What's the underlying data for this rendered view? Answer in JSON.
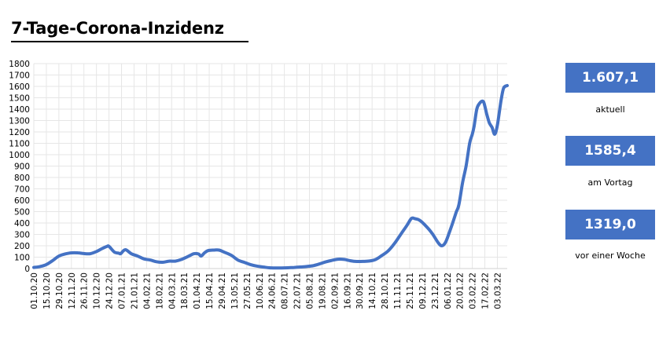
{
  "header": {
    "title": "7-Tage-Corona-Inzidenz"
  },
  "kpis": [
    {
      "value": "1.607,1",
      "label": "aktuell"
    },
    {
      "value": "1585,4",
      "label": "am Vortag"
    },
    {
      "value": "1319,0",
      "label": "vor einer Woche"
    }
  ],
  "colors": {
    "accent": "#4472c4",
    "grid": "#e6e6e6"
  },
  "chart_data": {
    "type": "line",
    "title": "7-Tage-Corona-Inzidenz",
    "xlabel": "",
    "ylabel": "",
    "ylim": [
      0,
      1800
    ],
    "yticks": [
      0,
      100,
      200,
      300,
      400,
      500,
      600,
      700,
      800,
      900,
      1000,
      1100,
      1200,
      1300,
      1400,
      1500,
      1600,
      1700,
      1800
    ],
    "grid": true,
    "x_start": "2020-10-01",
    "x_end": "2022-03-14",
    "xticks": [
      "01.10.20",
      "15.10.20",
      "29.10.20",
      "12.11.20",
      "26.11.20",
      "10.12.20",
      "24.12.20",
      "07.01.21",
      "21.01.21",
      "04.02.21",
      "18.02.21",
      "04.03.21",
      "18.03.21",
      "01.04.21",
      "15.04.21",
      "29.04.21",
      "13.05.21",
      "27.05.21",
      "10.06.21",
      "24.06.21",
      "08.07.21",
      "22.07.21",
      "05.08.21",
      "19.08.21",
      "02.09.21",
      "16.09.21",
      "30.09.21",
      "14.10.21",
      "28.10.21",
      "11.11.21",
      "25.11.21",
      "09.12.21",
      "23.12.21",
      "06.01.22",
      "20.01.22",
      "03.02.22",
      "17.02.22",
      "03.03.22"
    ],
    "series": [
      {
        "values": [
          [
            "2020-10-01",
            10
          ],
          [
            "2020-10-08",
            18
          ],
          [
            "2020-10-15",
            35
          ],
          [
            "2020-10-22",
            70
          ],
          [
            "2020-10-29",
            110
          ],
          [
            "2020-11-05",
            128
          ],
          [
            "2020-11-12",
            138
          ],
          [
            "2020-11-19",
            138
          ],
          [
            "2020-11-26",
            132
          ],
          [
            "2020-12-03",
            130
          ],
          [
            "2020-12-10",
            150
          ],
          [
            "2020-12-17",
            178
          ],
          [
            "2020-12-22",
            195
          ],
          [
            "2020-12-24",
            195
          ],
          [
            "2020-12-30",
            145
          ],
          [
            "2021-01-04",
            135
          ],
          [
            "2021-01-06",
            130
          ],
          [
            "2021-01-09",
            155
          ],
          [
            "2021-01-12",
            165
          ],
          [
            "2021-01-18",
            130
          ],
          [
            "2021-01-25",
            110
          ],
          [
            "2021-02-01",
            85
          ],
          [
            "2021-02-08",
            75
          ],
          [
            "2021-02-15",
            60
          ],
          [
            "2021-02-22",
            55
          ],
          [
            "2021-03-01",
            65
          ],
          [
            "2021-03-08",
            65
          ],
          [
            "2021-03-15",
            80
          ],
          [
            "2021-03-22",
            105
          ],
          [
            "2021-03-29",
            130
          ],
          [
            "2021-04-03",
            128
          ],
          [
            "2021-04-06",
            110
          ],
          [
            "2021-04-10",
            140
          ],
          [
            "2021-04-14",
            158
          ],
          [
            "2021-04-20",
            162
          ],
          [
            "2021-04-26",
            162
          ],
          [
            "2021-05-03",
            140
          ],
          [
            "2021-05-10",
            115
          ],
          [
            "2021-05-17",
            75
          ],
          [
            "2021-05-24",
            55
          ],
          [
            "2021-05-31",
            35
          ],
          [
            "2021-06-07",
            22
          ],
          [
            "2021-06-14",
            14
          ],
          [
            "2021-06-21",
            7
          ],
          [
            "2021-06-28",
            5
          ],
          [
            "2021-07-05",
            5
          ],
          [
            "2021-07-12",
            7
          ],
          [
            "2021-07-19",
            10
          ],
          [
            "2021-07-26",
            14
          ],
          [
            "2021-08-02",
            18
          ],
          [
            "2021-08-09",
            25
          ],
          [
            "2021-08-16",
            40
          ],
          [
            "2021-08-23",
            58
          ],
          [
            "2021-08-30",
            72
          ],
          [
            "2021-09-06",
            82
          ],
          [
            "2021-09-13",
            80
          ],
          [
            "2021-09-20",
            68
          ],
          [
            "2021-09-27",
            62
          ],
          [
            "2021-10-04",
            63
          ],
          [
            "2021-10-11",
            66
          ],
          [
            "2021-10-18",
            80
          ],
          [
            "2021-10-25",
            115
          ],
          [
            "2021-11-01",
            155
          ],
          [
            "2021-11-08",
            220
          ],
          [
            "2021-11-15",
            300
          ],
          [
            "2021-11-22",
            380
          ],
          [
            "2021-11-27",
            440
          ],
          [
            "2021-12-01",
            438
          ],
          [
            "2021-12-06",
            425
          ],
          [
            "2021-12-13",
            375
          ],
          [
            "2021-12-20",
            310
          ],
          [
            "2021-12-27",
            225
          ],
          [
            "2021-12-31",
            200
          ],
          [
            "2022-01-04",
            230
          ],
          [
            "2022-01-08",
            310
          ],
          [
            "2022-01-12",
            400
          ],
          [
            "2022-01-16",
            495
          ],
          [
            "2022-01-19",
            560
          ],
          [
            "2022-01-23",
            750
          ],
          [
            "2022-01-27",
            900
          ],
          [
            "2022-01-31",
            1100
          ],
          [
            "2022-02-03",
            1180
          ],
          [
            "2022-02-05",
            1250
          ],
          [
            "2022-02-08",
            1400
          ],
          [
            "2022-02-11",
            1450
          ],
          [
            "2022-02-14",
            1470
          ],
          [
            "2022-02-16",
            1455
          ],
          [
            "2022-02-19",
            1360
          ],
          [
            "2022-02-22",
            1280
          ],
          [
            "2022-02-25",
            1240
          ],
          [
            "2022-02-28",
            1180
          ],
          [
            "2022-03-03",
            1260
          ],
          [
            "2022-03-07",
            1470
          ],
          [
            "2022-03-10",
            1585
          ],
          [
            "2022-03-14",
            1607
          ]
        ]
      }
    ]
  }
}
